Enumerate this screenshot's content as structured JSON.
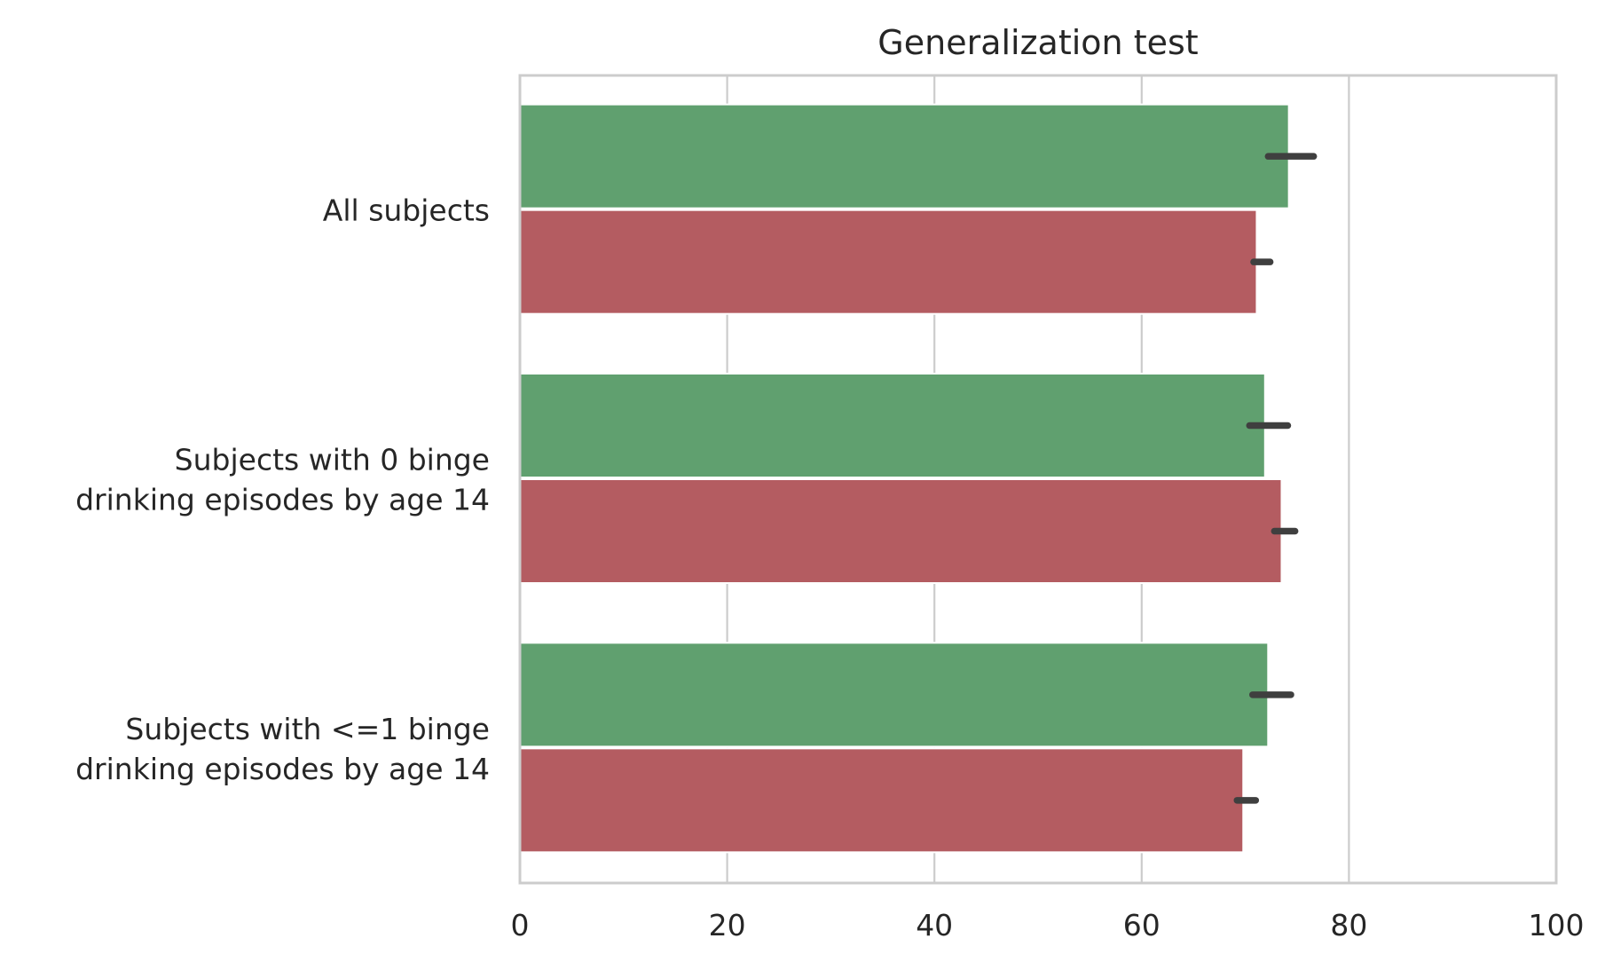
{
  "chart_data": {
    "type": "bar",
    "orientation": "horizontal",
    "title": "Generalization test",
    "xlabel": "",
    "ylabel": "",
    "xlim": [
      0,
      100
    ],
    "xticks": [
      "0",
      "20",
      "40",
      "60",
      "80",
      "100"
    ],
    "grid": true,
    "legend": "none",
    "categories": [
      [
        "All subjects"
      ],
      [
        "Subjects with 0 binge",
        "drinking episodes by age 14"
      ],
      [
        "Subjects with <=1 binge",
        "drinking episodes by age 14"
      ]
    ],
    "series": [
      {
        "color": "#60a06f",
        "values": [
          74.2,
          71.9,
          72.2
        ],
        "ci": [
          [
            72.2,
            76.6
          ],
          [
            70.4,
            74.1
          ],
          [
            70.7,
            74.4
          ]
        ]
      },
      {
        "color": "#b45c61",
        "values": [
          71.1,
          73.5,
          69.8
        ],
        "ci": [
          [
            70.8,
            72.4
          ],
          [
            72.8,
            74.8
          ],
          [
            69.2,
            71.0
          ]
        ]
      }
    ]
  }
}
